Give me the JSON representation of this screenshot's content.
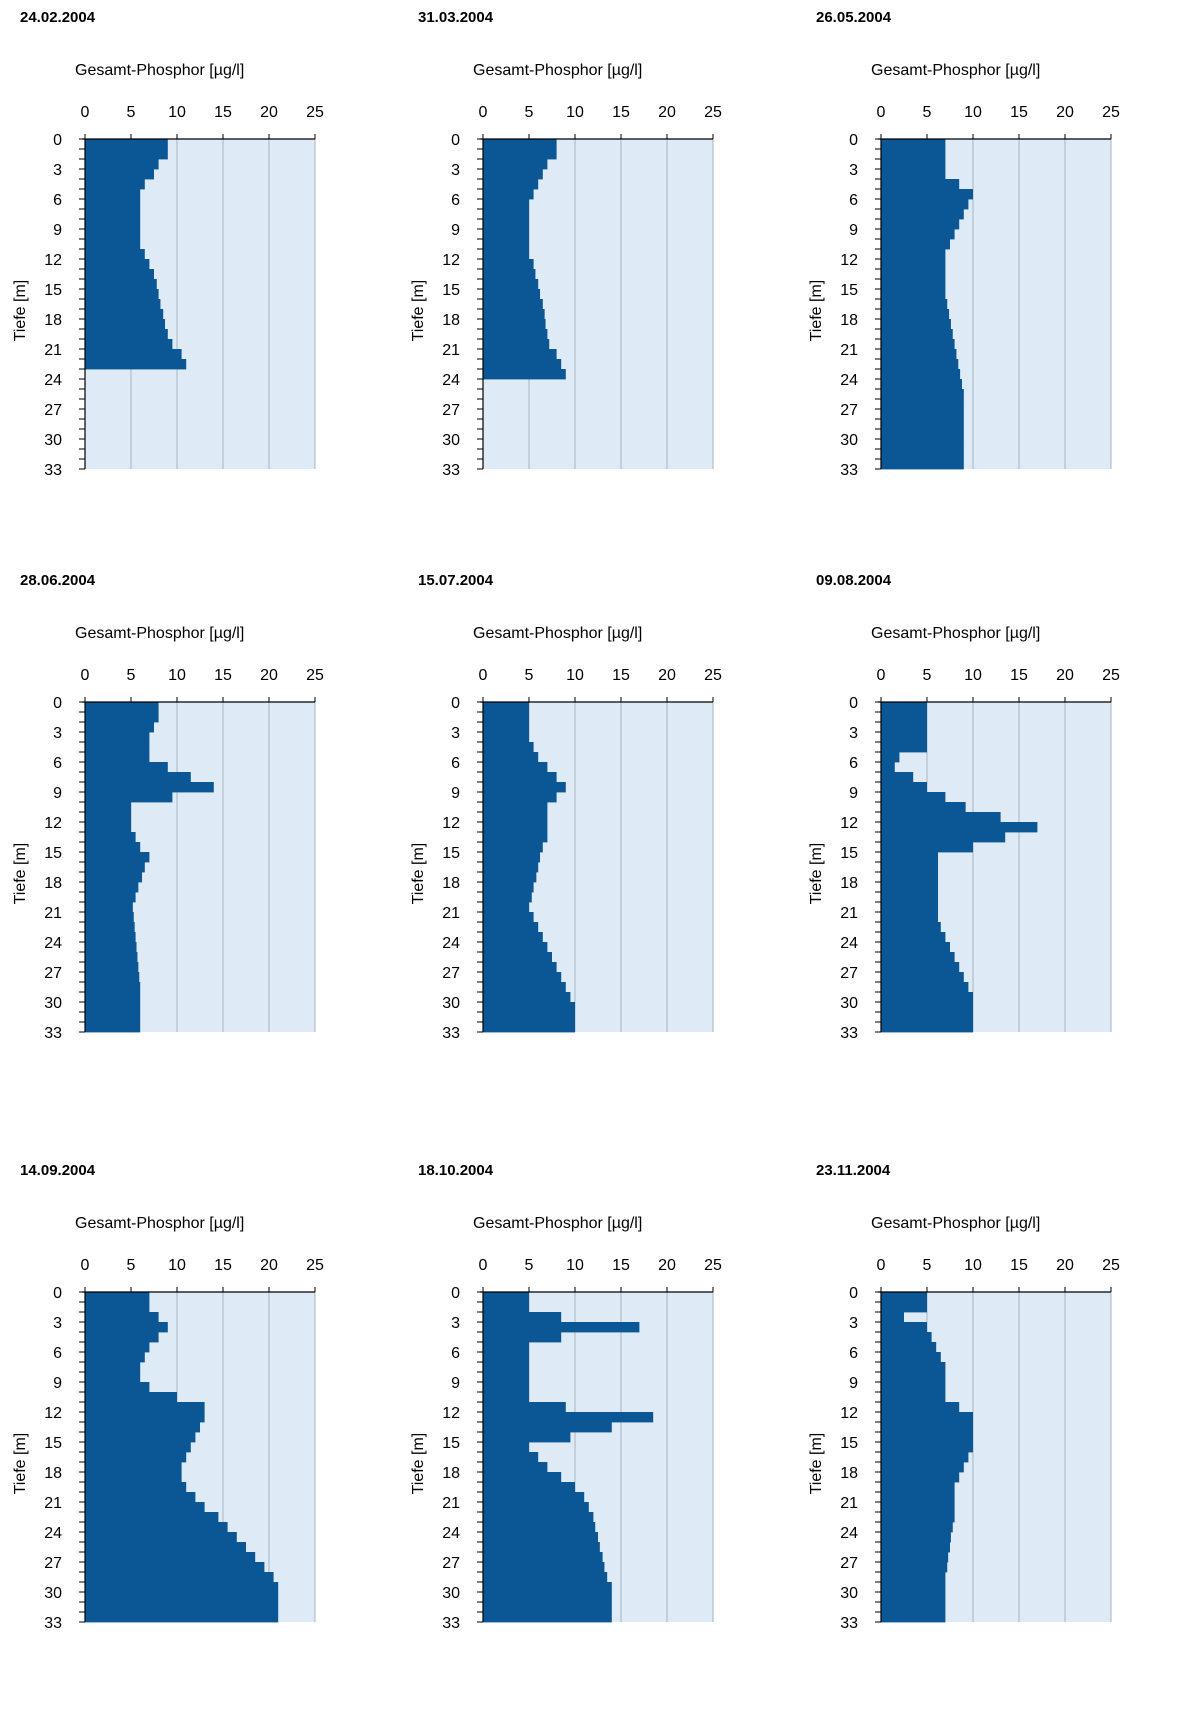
{
  "colors": {
    "bar": "#0b5694",
    "plot_bg": "#deebf7",
    "grid": "#a6b4c2",
    "axis": "#000000"
  },
  "chart_data": [
    {
      "type": "bar",
      "orientation": "horizontal",
      "title": "24.02.2004",
      "xlabel": "Gesamt-Phosphor [µg/l]",
      "ylabel": "Tiefe [m]",
      "xlim": [
        0,
        25
      ],
      "ylim": [
        0,
        33
      ],
      "xticks": [
        "0",
        "5",
        "10",
        "15",
        "20",
        "25"
      ],
      "yticks": [
        "0",
        "3",
        "6",
        "9",
        "12",
        "15",
        "18",
        "21",
        "24",
        "27",
        "30",
        "33"
      ],
      "depth": [
        0,
        1,
        2,
        3,
        4,
        5,
        6,
        7,
        8,
        9,
        10,
        11,
        12,
        13,
        14,
        15,
        16,
        17,
        18,
        19,
        20,
        21,
        22
      ],
      "values": [
        9,
        9,
        8,
        7.5,
        6.5,
        6,
        6,
        6,
        6,
        6,
        6,
        6.5,
        7,
        7.5,
        7.8,
        8,
        8.2,
        8.5,
        8.7,
        9,
        9.5,
        10.5,
        11
      ]
    },
    {
      "type": "bar",
      "orientation": "horizontal",
      "title": "31.03.2004",
      "xlabel": "Gesamt-Phosphor [µg/l]",
      "ylabel": "Tiefe [m]",
      "xlim": [
        0,
        25
      ],
      "ylim": [
        0,
        33
      ],
      "xticks": [
        "0",
        "5",
        "10",
        "15",
        "20",
        "25"
      ],
      "yticks": [
        "0",
        "3",
        "6",
        "9",
        "12",
        "15",
        "18",
        "21",
        "24",
        "27",
        "30",
        "33"
      ],
      "depth": [
        0,
        1,
        2,
        3,
        4,
        5,
        6,
        7,
        8,
        9,
        10,
        11,
        12,
        13,
        14,
        15,
        16,
        17,
        18,
        19,
        20,
        21,
        22,
        23
      ],
      "values": [
        8,
        8,
        7,
        6.5,
        6,
        5.5,
        5,
        5,
        5,
        5,
        5,
        5,
        5.5,
        5.7,
        6,
        6.2,
        6.5,
        6.7,
        6.8,
        7,
        7.2,
        8,
        8.5,
        9
      ]
    },
    {
      "type": "bar",
      "orientation": "horizontal",
      "title": "26.05.2004",
      "xlabel": "Gesamt-Phosphor [µg/l]",
      "ylabel": "Tiefe [m]",
      "xlim": [
        0,
        25
      ],
      "ylim": [
        0,
        33
      ],
      "xticks": [
        "0",
        "5",
        "10",
        "15",
        "20",
        "25"
      ],
      "yticks": [
        "0",
        "3",
        "6",
        "9",
        "12",
        "15",
        "18",
        "21",
        "24",
        "27",
        "30",
        "33"
      ],
      "depth": [
        0,
        1,
        2,
        3,
        4,
        5,
        6,
        7,
        8,
        9,
        10,
        11,
        12,
        13,
        14,
        15,
        16,
        17,
        18,
        19,
        20,
        21,
        22,
        23,
        24,
        25,
        26,
        27,
        28,
        29,
        30,
        31,
        32
      ],
      "values": [
        7,
        7,
        7,
        7,
        8.5,
        10,
        9.5,
        9,
        8.5,
        8,
        7.5,
        7,
        7,
        7,
        7,
        7,
        7.2,
        7.4,
        7.6,
        7.8,
        8,
        8.2,
        8.4,
        8.6,
        8.8,
        9,
        9,
        9,
        9,
        9,
        9,
        9,
        9
      ]
    },
    {
      "type": "bar",
      "orientation": "horizontal",
      "title": "28.06.2004",
      "xlabel": "Gesamt-Phosphor [µg/l]",
      "ylabel": "Tiefe [m]",
      "xlim": [
        0,
        25
      ],
      "ylim": [
        0,
        33
      ],
      "xticks": [
        "0",
        "5",
        "10",
        "15",
        "20",
        "25"
      ],
      "yticks": [
        "0",
        "3",
        "6",
        "9",
        "12",
        "15",
        "18",
        "21",
        "24",
        "27",
        "30",
        "33"
      ],
      "depth": [
        0,
        1,
        2,
        3,
        4,
        5,
        6,
        7,
        8,
        9,
        10,
        11,
        12,
        13,
        14,
        15,
        16,
        17,
        18,
        19,
        20,
        21,
        22,
        23,
        24,
        25,
        26,
        27,
        28,
        29,
        30,
        31,
        32
      ],
      "values": [
        8,
        8,
        7.5,
        7,
        7,
        7,
        9,
        11.5,
        14,
        9.5,
        5,
        5,
        5,
        5.5,
        6,
        7,
        6.5,
        6.2,
        5.8,
        5.5,
        5.2,
        5.3,
        5.4,
        5.5,
        5.6,
        5.7,
        5.8,
        5.9,
        6,
        6,
        6,
        6,
        6
      ]
    },
    {
      "type": "bar",
      "orientation": "horizontal",
      "title": "15.07.2004",
      "xlabel": "Gesamt-Phosphor [µg/l]",
      "ylabel": "Tiefe [m]",
      "xlim": [
        0,
        25
      ],
      "ylim": [
        0,
        33
      ],
      "xticks": [
        "0",
        "5",
        "10",
        "15",
        "20",
        "25"
      ],
      "yticks": [
        "0",
        "3",
        "6",
        "9",
        "12",
        "15",
        "18",
        "21",
        "24",
        "27",
        "30",
        "33"
      ],
      "depth": [
        0,
        1,
        2,
        3,
        4,
        5,
        6,
        7,
        8,
        9,
        10,
        11,
        12,
        13,
        14,
        15,
        16,
        17,
        18,
        19,
        20,
        21,
        22,
        23,
        24,
        25,
        26,
        27,
        28,
        29,
        30,
        31,
        32
      ],
      "values": [
        5,
        5,
        5,
        5,
        5.5,
        6,
        7,
        8,
        9,
        8,
        7,
        7,
        7,
        7,
        6.5,
        6.2,
        6,
        5.8,
        5.5,
        5.3,
        5,
        5.5,
        6,
        6.5,
        7,
        7.5,
        8,
        8.5,
        9,
        9.5,
        10,
        10,
        10
      ]
    },
    {
      "type": "bar",
      "orientation": "horizontal",
      "title": "09.08.2004",
      "xlabel": "Gesamt-Phosphor [µg/l]",
      "ylabel": "Tiefe [m]",
      "xlim": [
        0,
        25
      ],
      "ylim": [
        0,
        33
      ],
      "xticks": [
        "0",
        "5",
        "10",
        "15",
        "20",
        "25"
      ],
      "yticks": [
        "0",
        "3",
        "6",
        "9",
        "12",
        "15",
        "18",
        "21",
        "24",
        "27",
        "30",
        "33"
      ],
      "depth": [
        0,
        1,
        2,
        3,
        4,
        5,
        6,
        7,
        8,
        9,
        10,
        11,
        12,
        13,
        14,
        15,
        16,
        17,
        18,
        19,
        20,
        21,
        22,
        23,
        24,
        25,
        26,
        27,
        28,
        29,
        30,
        31,
        32
      ],
      "values": [
        5,
        5,
        5,
        5,
        5,
        2,
        1.5,
        3.5,
        5,
        7,
        9.2,
        13,
        17,
        13.5,
        10,
        6.2,
        6.2,
        6.2,
        6.2,
        6.2,
        6.2,
        6.2,
        6.5,
        7,
        7.5,
        8,
        8.5,
        9,
        9.5,
        10,
        10,
        10,
        10
      ]
    },
    {
      "type": "bar",
      "orientation": "horizontal",
      "title": "14.09.2004",
      "xlabel": "Gesamt-Phosphor [µg/l]",
      "ylabel": "Tiefe [m]",
      "xlim": [
        0,
        25
      ],
      "ylim": [
        0,
        33
      ],
      "xticks": [
        "0",
        "5",
        "10",
        "15",
        "20",
        "25"
      ],
      "yticks": [
        "0",
        "3",
        "6",
        "9",
        "12",
        "15",
        "18",
        "21",
        "24",
        "27",
        "30",
        "33"
      ],
      "depth": [
        0,
        1,
        2,
        3,
        4,
        5,
        6,
        7,
        8,
        9,
        10,
        11,
        12,
        13,
        14,
        15,
        16,
        17,
        18,
        19,
        20,
        21,
        22,
        23,
        24,
        25,
        26,
        27,
        28,
        29,
        30,
        31,
        32
      ],
      "values": [
        7,
        7,
        8,
        9,
        8,
        7,
        6.5,
        6,
        6,
        7,
        10,
        13,
        13,
        12.5,
        12,
        11.5,
        11,
        10.5,
        10.5,
        11,
        12,
        13,
        14.5,
        15.5,
        16.5,
        17.5,
        18.5,
        19.5,
        20.5,
        21,
        21,
        21,
        21
      ]
    },
    {
      "type": "bar",
      "orientation": "horizontal",
      "title": "18.10.2004",
      "xlabel": "Gesamt-Phosphor [µg/l]",
      "ylabel": "Tiefe [m]",
      "xlim": [
        0,
        25
      ],
      "ylim": [
        0,
        33
      ],
      "xticks": [
        "0",
        "5",
        "10",
        "15",
        "20",
        "25"
      ],
      "yticks": [
        "0",
        "3",
        "6",
        "9",
        "12",
        "15",
        "18",
        "21",
        "24",
        "27",
        "30",
        "33"
      ],
      "depth": [
        0,
        1,
        2,
        3,
        4,
        5,
        6,
        7,
        8,
        9,
        10,
        11,
        12,
        13,
        14,
        15,
        16,
        17,
        18,
        19,
        20,
        21,
        22,
        23,
        24,
        25,
        26,
        27,
        28,
        29,
        30,
        31,
        32
      ],
      "values": [
        5,
        5,
        8.5,
        17,
        8.5,
        5,
        5,
        5,
        5,
        5,
        5,
        9,
        18.5,
        14,
        9.5,
        5,
        6,
        7,
        8.5,
        10,
        11,
        11.5,
        12,
        12.2,
        12.5,
        12.7,
        13,
        13.2,
        13.5,
        14,
        14,
        14,
        14
      ]
    },
    {
      "type": "bar",
      "orientation": "horizontal",
      "title": "23.11.2004",
      "xlabel": "Gesamt-Phosphor [µg/l]",
      "ylabel": "Tiefe [m]",
      "xlim": [
        0,
        25
      ],
      "ylim": [
        0,
        33
      ],
      "xticks": [
        "0",
        "5",
        "10",
        "15",
        "20",
        "25"
      ],
      "yticks": [
        "0",
        "3",
        "6",
        "9",
        "12",
        "15",
        "18",
        "21",
        "24",
        "27",
        "30",
        "33"
      ],
      "depth": [
        0,
        1,
        2,
        3,
        4,
        5,
        6,
        7,
        8,
        9,
        10,
        11,
        12,
        13,
        14,
        15,
        16,
        17,
        18,
        19,
        20,
        21,
        22,
        23,
        24,
        25,
        26,
        27,
        28,
        29,
        30,
        31,
        32
      ],
      "values": [
        5,
        5,
        2.5,
        5,
        5.5,
        6,
        6.5,
        7,
        7,
        7,
        7,
        8.5,
        10,
        10,
        10,
        10,
        9.5,
        9,
        8.5,
        8,
        8,
        8,
        8,
        7.8,
        7.6,
        7.5,
        7.3,
        7.2,
        7,
        7,
        7,
        7,
        7
      ]
    }
  ]
}
